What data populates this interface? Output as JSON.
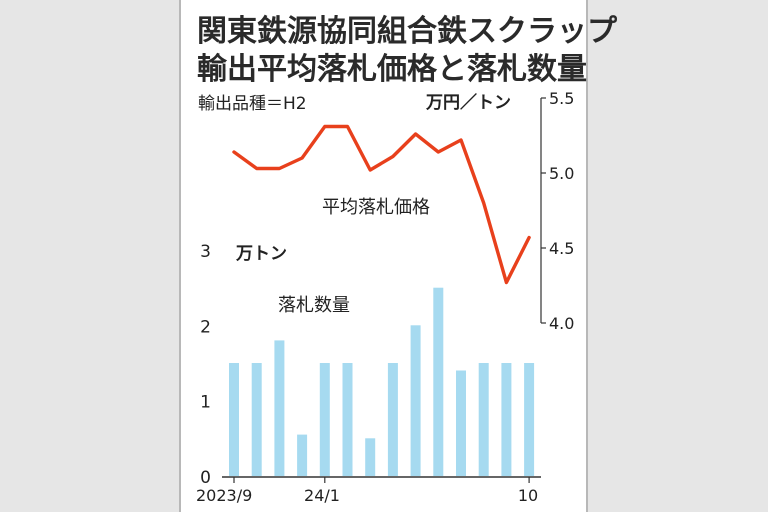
{
  "title": {
    "line1": "関東鉄源協同組合鉄スクラップ",
    "line2": "輸出平均落札価格と落札数量"
  },
  "chart_data": {
    "type": "bar+line",
    "note": "輸出品種＝H2",
    "x_tick_labels": [
      "2023/9",
      "24/1",
      "10"
    ],
    "price": {
      "name": "平均落札価格",
      "unit": "万円／トン",
      "color": "#e8401c",
      "ylim": [
        4.0,
        5.5
      ],
      "ticks": [
        "4.0",
        "4.5",
        "5.0",
        "5.5"
      ],
      "values": [
        5.14,
        5.03,
        5.03,
        5.1,
        5.31,
        5.31,
        5.02,
        5.11,
        5.26,
        5.14,
        5.22,
        4.8,
        4.27,
        4.57
      ]
    },
    "volume": {
      "name": "落札数量",
      "unit": "万トン",
      "color": "#a6daf0",
      "ylim": [
        0,
        3
      ],
      "ticks": [
        "0",
        "1",
        "2",
        "3"
      ],
      "values": [
        1.5,
        1.5,
        1.8,
        0.55,
        1.5,
        1.5,
        0.5,
        1.5,
        2.0,
        2.5,
        1.4,
        1.5,
        1.5,
        1.5
      ]
    }
  }
}
